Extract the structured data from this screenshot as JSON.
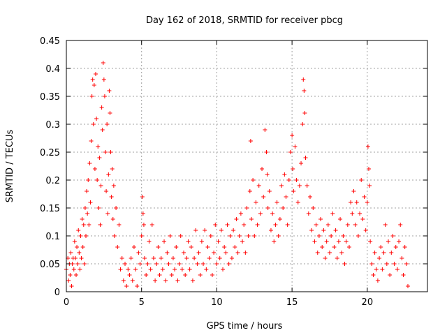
{
  "chart_data": {
    "type": "scatter",
    "title": "Day 162 of 2018, SRMTID for receiver pbcg",
    "xlabel": "GPS time / hours",
    "ylabel": "SRMTID / TECUs",
    "xlim": [
      0,
      24
    ],
    "ylim": [
      0,
      0.45
    ],
    "xticks": [
      "0",
      "5",
      "10",
      "15",
      "20"
    ],
    "xtick_values": [
      0,
      5,
      10,
      15,
      20
    ],
    "yticks": [
      "0",
      "0.05",
      "0.1",
      "0.15",
      "0.2",
      "0.25",
      "0.3",
      "0.35",
      "0.4",
      "0.45"
    ],
    "ytick_values": [
      0,
      0.05,
      0.1,
      0.15,
      0.2,
      0.25,
      0.3,
      0.35,
      0.4,
      0.45
    ],
    "grid": true,
    "marker": "+",
    "series": [
      {
        "name": "SRMTID",
        "color": "#ff0000",
        "points": [
          [
            0.0,
            0.04
          ],
          [
            0.1,
            0.06
          ],
          [
            0.15,
            0.02
          ],
          [
            0.2,
            0.05
          ],
          [
            0.25,
            0.03
          ],
          [
            0.3,
            0.07
          ],
          [
            0.35,
            0.01
          ],
          [
            0.4,
            0.05
          ],
          [
            0.45,
            0.06
          ],
          [
            0.5,
            0.04
          ],
          [
            0.55,
            0.09
          ],
          [
            0.6,
            0.06
          ],
          [
            0.65,
            0.03
          ],
          [
            0.7,
            0.08
          ],
          [
            0.75,
            0.05
          ],
          [
            0.8,
            0.11
          ],
          [
            0.85,
            0.07
          ],
          [
            0.9,
            0.04
          ],
          [
            0.95,
            0.1
          ],
          [
            1.0,
            0.06
          ],
          [
            1.05,
            0.13
          ],
          [
            1.1,
            0.08
          ],
          [
            1.15,
            0.12
          ],
          [
            1.2,
            0.05
          ],
          [
            1.25,
            0.15
          ],
          [
            1.3,
            0.1
          ],
          [
            1.35,
            0.18
          ],
          [
            1.4,
            0.14
          ],
          [
            1.45,
            0.2
          ],
          [
            1.5,
            0.12
          ],
          [
            1.55,
            0.23
          ],
          [
            1.6,
            0.16
          ],
          [
            1.65,
            0.27
          ],
          [
            1.7,
            0.35
          ],
          [
            1.75,
            0.38
          ],
          [
            1.8,
            0.3
          ],
          [
            1.85,
            0.37
          ],
          [
            1.9,
            0.22
          ],
          [
            1.95,
            0.39
          ],
          [
            2.0,
            0.31
          ],
          [
            2.05,
            0.2
          ],
          [
            2.1,
            0.26
          ],
          [
            2.15,
            0.15
          ],
          [
            2.2,
            0.24
          ],
          [
            2.25,
            0.12
          ],
          [
            2.3,
            0.19
          ],
          [
            2.35,
            0.33
          ],
          [
            2.4,
            0.29
          ],
          [
            2.45,
            0.41
          ],
          [
            2.5,
            0.38
          ],
          [
            2.55,
            0.35
          ],
          [
            2.6,
            0.25
          ],
          [
            2.65,
            0.18
          ],
          [
            2.7,
            0.3
          ],
          [
            2.75,
            0.14
          ],
          [
            2.8,
            0.21
          ],
          [
            2.85,
            0.36
          ],
          [
            2.9,
            0.32
          ],
          [
            2.95,
            0.25
          ],
          [
            3.0,
            0.17
          ],
          [
            3.05,
            0.22
          ],
          [
            3.1,
            0.13
          ],
          [
            3.15,
            0.19
          ],
          [
            3.2,
            0.1
          ],
          [
            3.3,
            0.15
          ],
          [
            3.4,
            0.08
          ],
          [
            3.5,
            0.12
          ],
          [
            3.6,
            0.04
          ],
          [
            3.7,
            0.06
          ],
          [
            3.8,
            0.02
          ],
          [
            3.9,
            0.05
          ],
          [
            4.0,
            0.01
          ],
          [
            4.1,
            0.04
          ],
          [
            4.2,
            0.03
          ],
          [
            4.3,
            0.06
          ],
          [
            4.4,
            0.02
          ],
          [
            4.5,
            0.08
          ],
          [
            4.6,
            0.04
          ],
          [
            4.7,
            0.01
          ],
          [
            4.8,
            0.07
          ],
          [
            4.9,
            0.05
          ],
          [
            5.0,
            0.1
          ],
          [
            5.05,
            0.17
          ],
          [
            5.1,
            0.14
          ],
          [
            5.15,
            0.12
          ],
          [
            5.2,
            0.06
          ],
          [
            5.3,
            0.03
          ],
          [
            5.4,
            0.05
          ],
          [
            5.5,
            0.09
          ],
          [
            5.6,
            0.04
          ],
          [
            5.7,
            0.12
          ],
          [
            5.8,
            0.06
          ],
          [
            5.9,
            0.02
          ],
          [
            6.0,
            0.05
          ],
          [
            6.1,
            0.08
          ],
          [
            6.2,
            0.03
          ],
          [
            6.3,
            0.06
          ],
          [
            6.4,
            0.04
          ],
          [
            6.5,
            0.09
          ],
          [
            6.6,
            0.02
          ],
          [
            6.7,
            0.07
          ],
          [
            6.8,
            0.05
          ],
          [
            6.9,
            0.1
          ],
          [
            7.0,
            0.03
          ],
          [
            7.1,
            0.06
          ],
          [
            7.2,
            0.04
          ],
          [
            7.3,
            0.08
          ],
          [
            7.4,
            0.02
          ],
          [
            7.5,
            0.05
          ],
          [
            7.6,
            0.1
          ],
          [
            7.7,
            0.04
          ],
          [
            7.8,
            0.07
          ],
          [
            7.9,
            0.03
          ],
          [
            8.0,
            0.06
          ],
          [
            8.1,
            0.09
          ],
          [
            8.2,
            0.04
          ],
          [
            8.3,
            0.08
          ],
          [
            8.4,
            0.02
          ],
          [
            8.5,
            0.06
          ],
          [
            8.6,
            0.11
          ],
          [
            8.7,
            0.05
          ],
          [
            8.8,
            0.07
          ],
          [
            8.9,
            0.03
          ],
          [
            9.0,
            0.09
          ],
          [
            9.1,
            0.05
          ],
          [
            9.2,
            0.11
          ],
          [
            9.3,
            0.04
          ],
          [
            9.4,
            0.08
          ],
          [
            9.5,
            0.06
          ],
          [
            9.6,
            0.1
          ],
          [
            9.7,
            0.03
          ],
          [
            9.8,
            0.07
          ],
          [
            9.9,
            0.12
          ],
          [
            10.0,
            0.05
          ],
          [
            10.1,
            0.09
          ],
          [
            10.2,
            0.06
          ],
          [
            10.3,
            0.11
          ],
          [
            10.4,
            0.04
          ],
          [
            10.5,
            0.08
          ],
          [
            10.6,
            0.07
          ],
          [
            10.7,
            0.12
          ],
          [
            10.8,
            0.05
          ],
          [
            10.9,
            0.1
          ],
          [
            11.0,
            0.06
          ],
          [
            11.1,
            0.11
          ],
          [
            11.2,
            0.08
          ],
          [
            11.3,
            0.13
          ],
          [
            11.4,
            0.07
          ],
          [
            11.5,
            0.1
          ],
          [
            11.6,
            0.14
          ],
          [
            11.7,
            0.09
          ],
          [
            11.8,
            0.12
          ],
          [
            11.9,
            0.07
          ],
          [
            12.0,
            0.15
          ],
          [
            12.1,
            0.1
          ],
          [
            12.2,
            0.18
          ],
          [
            12.25,
            0.27
          ],
          [
            12.3,
            0.13
          ],
          [
            12.4,
            0.2
          ],
          [
            12.5,
            0.1
          ],
          [
            12.6,
            0.16
          ],
          [
            12.7,
            0.12
          ],
          [
            12.8,
            0.19
          ],
          [
            12.9,
            0.14
          ],
          [
            13.0,
            0.22
          ],
          [
            13.1,
            0.17
          ],
          [
            13.2,
            0.29
          ],
          [
            13.3,
            0.25
          ],
          [
            13.35,
            0.21
          ],
          [
            13.4,
            0.15
          ],
          [
            13.5,
            0.18
          ],
          [
            13.6,
            0.11
          ],
          [
            13.7,
            0.14
          ],
          [
            13.8,
            0.09
          ],
          [
            13.9,
            0.12
          ],
          [
            14.0,
            0.16
          ],
          [
            14.1,
            0.1
          ],
          [
            14.2,
            0.13
          ],
          [
            14.3,
            0.19
          ],
          [
            14.4,
            0.15
          ],
          [
            14.5,
            0.21
          ],
          [
            14.6,
            0.17
          ],
          [
            14.7,
            0.12
          ],
          [
            14.8,
            0.2
          ],
          [
            14.9,
            0.25
          ],
          [
            15.0,
            0.28
          ],
          [
            15.05,
            0.22
          ],
          [
            15.1,
            0.18
          ],
          [
            15.2,
            0.26
          ],
          [
            15.3,
            0.2
          ],
          [
            15.4,
            0.16
          ],
          [
            15.5,
            0.19
          ],
          [
            15.6,
            0.23
          ],
          [
            15.7,
            0.3
          ],
          [
            15.75,
            0.38
          ],
          [
            15.8,
            0.36
          ],
          [
            15.85,
            0.32
          ],
          [
            15.9,
            0.24
          ],
          [
            16.0,
            0.19
          ],
          [
            16.1,
            0.14
          ],
          [
            16.2,
            0.17
          ],
          [
            16.3,
            0.11
          ],
          [
            16.4,
            0.15
          ],
          [
            16.5,
            0.09
          ],
          [
            16.6,
            0.12
          ],
          [
            16.7,
            0.07
          ],
          [
            16.8,
            0.1
          ],
          [
            16.9,
            0.13
          ],
          [
            17.0,
            0.08
          ],
          [
            17.1,
            0.11
          ],
          [
            17.2,
            0.06
          ],
          [
            17.3,
            0.09
          ],
          [
            17.4,
            0.12
          ],
          [
            17.5,
            0.07
          ],
          [
            17.6,
            0.1
          ],
          [
            17.7,
            0.14
          ],
          [
            17.8,
            0.08
          ],
          [
            17.9,
            0.11
          ],
          [
            18.0,
            0.06
          ],
          [
            18.1,
            0.09
          ],
          [
            18.2,
            0.13
          ],
          [
            18.3,
            0.07
          ],
          [
            18.4,
            0.1
          ],
          [
            18.5,
            0.05
          ],
          [
            18.6,
            0.09
          ],
          [
            18.7,
            0.12
          ],
          [
            18.8,
            0.08
          ],
          [
            18.9,
            0.16
          ],
          [
            19.0,
            0.14
          ],
          [
            19.1,
            0.18
          ],
          [
            19.2,
            0.12
          ],
          [
            19.3,
            0.16
          ],
          [
            19.4,
            0.1
          ],
          [
            19.5,
            0.14
          ],
          [
            19.6,
            0.2
          ],
          [
            19.7,
            0.13
          ],
          [
            19.8,
            0.17
          ],
          [
            19.9,
            0.11
          ],
          [
            20.0,
            0.16
          ],
          [
            20.05,
            0.26
          ],
          [
            20.1,
            0.22
          ],
          [
            20.15,
            0.19
          ],
          [
            20.2,
            0.09
          ],
          [
            20.3,
            0.05
          ],
          [
            20.4,
            0.03
          ],
          [
            20.5,
            0.07
          ],
          [
            20.6,
            0.04
          ],
          [
            20.7,
            0.02
          ],
          [
            20.8,
            0.06
          ],
          [
            20.9,
            0.08
          ],
          [
            21.0,
            0.04
          ],
          [
            21.1,
            0.07
          ],
          [
            21.2,
            0.12
          ],
          [
            21.3,
            0.05
          ],
          [
            21.4,
            0.09
          ],
          [
            21.5,
            0.03
          ],
          [
            21.6,
            0.07
          ],
          [
            21.7,
            0.1
          ],
          [
            21.8,
            0.05
          ],
          [
            21.9,
            0.08
          ],
          [
            22.0,
            0.04
          ],
          [
            22.1,
            0.09
          ],
          [
            22.2,
            0.12
          ],
          [
            22.3,
            0.06
          ],
          [
            22.4,
            0.03
          ],
          [
            22.5,
            0.08
          ],
          [
            22.6,
            0.05
          ],
          [
            22.7,
            0.01
          ]
        ]
      }
    ]
  }
}
